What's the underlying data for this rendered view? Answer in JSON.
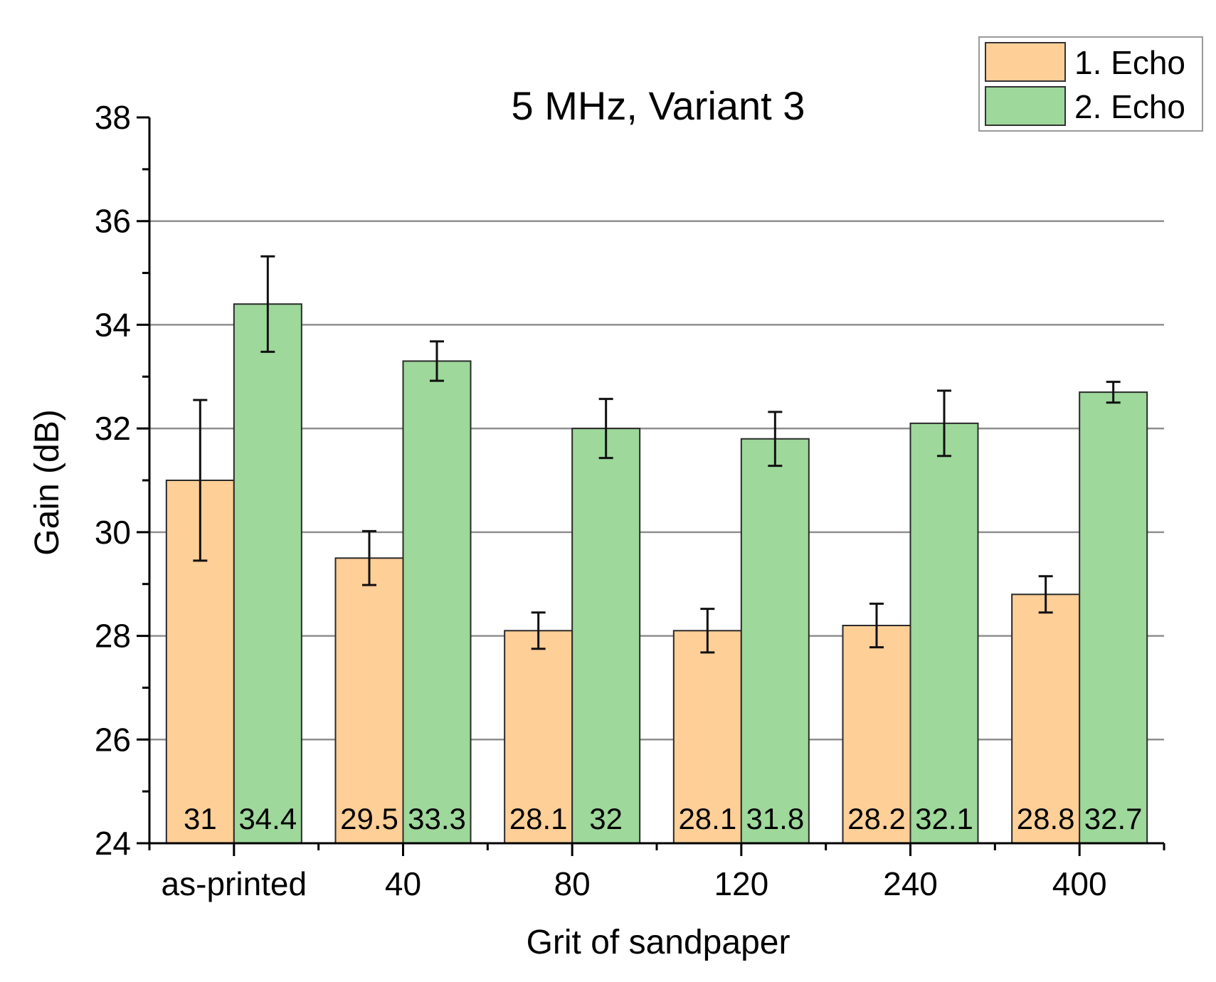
{
  "chart_data": {
    "type": "bar",
    "title": "5 MHz, Variant 3",
    "xlabel": "Grit of sandpaper",
    "ylabel": "Gain (dB)",
    "ylim": [
      24,
      38
    ],
    "yticks": [
      24,
      26,
      28,
      30,
      32,
      34,
      36,
      38
    ],
    "grid": true,
    "legend_position": "top-right",
    "categories": [
      "as-printed",
      "40",
      "80",
      "120",
      "240",
      "400"
    ],
    "series": [
      {
        "name": "1. Echo",
        "color": "#FFCF98",
        "values": [
          31,
          29.5,
          28.1,
          28.1,
          28.2,
          28.8
        ],
        "labels": [
          "31",
          "29.5",
          "28.1",
          "28.1",
          "28.2",
          "28.8"
        ],
        "errors": [
          1.55,
          0.52,
          0.35,
          0.42,
          0.42,
          0.35
        ]
      },
      {
        "name": "2. Echo",
        "color": "#9ED89B",
        "values": [
          34.4,
          33.3,
          32,
          31.8,
          32.1,
          32.7
        ],
        "labels": [
          "34.4",
          "33.3",
          "32",
          "31.8",
          "32.1",
          "32.7"
        ],
        "errors": [
          0.92,
          0.38,
          0.57,
          0.52,
          0.63,
          0.2
        ]
      }
    ]
  }
}
